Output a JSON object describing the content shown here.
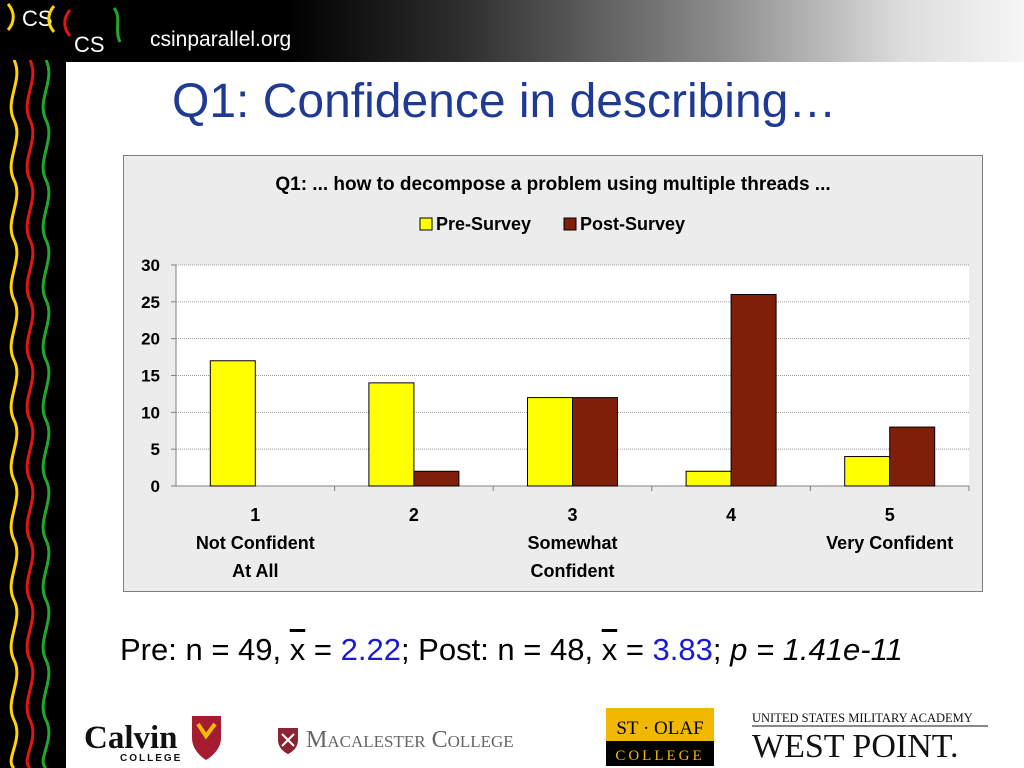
{
  "header": {
    "site": "csinparallel.org",
    "logo_text": [
      "CS",
      "CS"
    ]
  },
  "slide": {
    "title": "Q1: Confidence in describing…"
  },
  "chart_data": {
    "type": "bar",
    "title": "Q1: ... how to decompose a problem using multiple threads ...",
    "categories": [
      [
        "1",
        "Not Confident",
        "At All"
      ],
      [
        "2"
      ],
      [
        "3",
        "Somewhat",
        "Confident"
      ],
      [
        "4"
      ],
      [
        "5",
        "Very Confident"
      ]
    ],
    "series": [
      {
        "name": "Pre-Survey",
        "color": "#ffff00",
        "values": [
          17,
          14,
          12,
          2,
          4
        ]
      },
      {
        "name": "Post-Survey",
        "color": "#7f1f0a",
        "values": [
          0,
          2,
          12,
          26,
          8
        ]
      }
    ],
    "yticks": [
      0,
      5,
      10,
      15,
      20,
      25,
      30
    ],
    "ylim": [
      0,
      30
    ],
    "legend": "top-center",
    "grid": true
  },
  "stats": {
    "pre_label": "Pre: n = 49, ",
    "xbar": "x",
    "eq": " = ",
    "pre_mean": "2.22",
    "mid": "; Post: n = 48, ",
    "post_mean": "3.83",
    "sep": "; ",
    "p_text": "p = 1.41e-11"
  },
  "footer": {
    "calvin": "Calvin",
    "calvin_sub": "COLLEGE",
    "macalester": "Macalester College",
    "stolaf_top": "ST · OLAF",
    "stolaf_bottom": "COLLEGE",
    "westpoint_top": "UNITED STATES MILITARY ACADEMY",
    "westpoint_main": "WEST POINT."
  }
}
